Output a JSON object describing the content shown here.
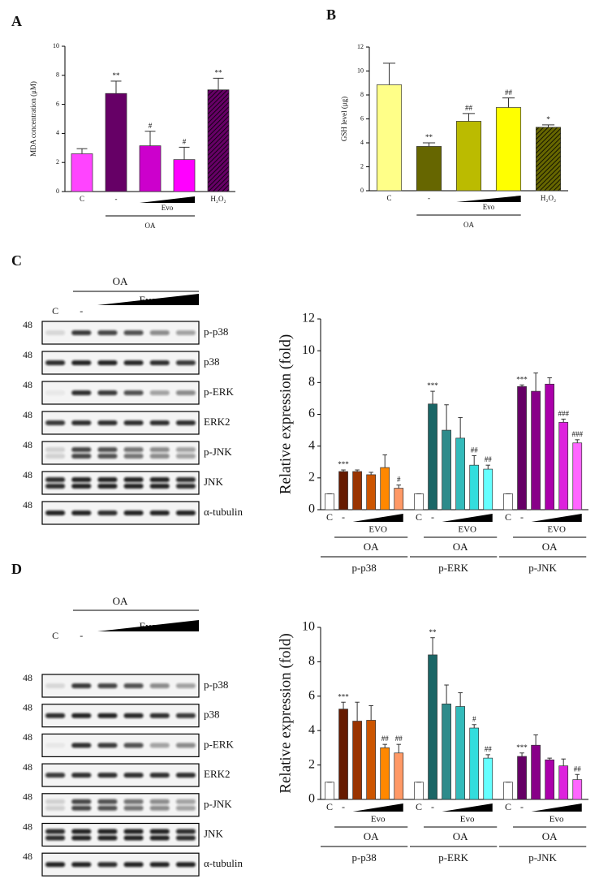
{
  "panel_labels": [
    "A",
    "B",
    "C",
    "D"
  ],
  "chart_data": [
    {
      "type": "bar",
      "ylabel": "MDA concentration (μM)",
      "ylim": [
        0,
        10
      ],
      "yticks": [
        0,
        2,
        4,
        6,
        8,
        10
      ],
      "categories": [
        "C",
        "-",
        null,
        null,
        "H₂O₂"
      ],
      "values": [
        2.6,
        6.75,
        3.15,
        2.2,
        7.0
      ],
      "errors": [
        0.35,
        0.85,
        1.0,
        0.85,
        0.8
      ],
      "colors": [
        "#ff44ff",
        "#660066",
        "#cc00cc",
        "#ff00ff",
        "#660066"
      ],
      "hatched": [
        false,
        false,
        false,
        false,
        true
      ],
      "annotations": [
        null,
        "**",
        "#",
        "#",
        "**"
      ],
      "treatment": "Evo",
      "condition": "OA"
    },
    {
      "type": "bar",
      "ylabel": "GSH level (μg)",
      "ylim": [
        0,
        12
      ],
      "yticks": [
        0,
        2,
        4,
        6,
        8,
        10,
        12
      ],
      "categories": [
        "C",
        "-",
        null,
        null,
        "H₂O₂"
      ],
      "values": [
        8.85,
        3.7,
        5.8,
        6.95,
        5.3
      ],
      "errors": [
        1.8,
        0.3,
        0.65,
        0.8,
        0.2
      ],
      "colors": [
        "#ffff88",
        "#666600",
        "#bbbb00",
        "#ffff00",
        "#666600"
      ],
      "hatched": [
        false,
        false,
        false,
        false,
        true
      ],
      "annotations": [
        null,
        "**",
        "##",
        "##",
        "*"
      ],
      "treatment": "Evo",
      "condition": "OA"
    },
    {
      "type": "grouped_bar",
      "ylabel": "Relative expression (fold)",
      "ylim": [
        0,
        12
      ],
      "yticks": [
        0,
        2,
        4,
        6,
        8,
        10,
        12
      ],
      "groups": [
        {
          "name": "p-p38",
          "categories": [
            "C",
            "-",
            null,
            null,
            null,
            null
          ],
          "values": [
            1,
            2.4,
            2.4,
            2.2,
            2.65,
            1.35
          ],
          "errors": [
            0,
            0.1,
            0.1,
            0.15,
            0.8,
            0.2
          ],
          "colors": [
            "#ffffff",
            "#661a00",
            "#993300",
            "#cc5500",
            "#ff8800",
            "#ff9966"
          ],
          "annotations": [
            null,
            "***",
            null,
            null,
            null,
            "#"
          ],
          "treatment": "EVO",
          "condition": "OA"
        },
        {
          "name": "p-ERK",
          "categories": [
            "C",
            "-",
            null,
            null,
            null,
            null
          ],
          "values": [
            1,
            6.65,
            5.0,
            4.5,
            2.8,
            2.55
          ],
          "errors": [
            0,
            0.8,
            1.6,
            1.3,
            0.6,
            0.25
          ],
          "colors": [
            "#ffffff",
            "#1a6666",
            "#2e8b8b",
            "#33bbbb",
            "#33dddd",
            "#66ffff"
          ],
          "annotations": [
            null,
            "***",
            null,
            null,
            "##",
            "##"
          ],
          "treatment": "EVO",
          "condition": "OA"
        },
        {
          "name": "p-JNK",
          "categories": [
            "C",
            "-",
            null,
            null,
            null,
            null
          ],
          "values": [
            1,
            7.75,
            7.45,
            7.9,
            5.5,
            4.2
          ],
          "errors": [
            0,
            0.1,
            1.15,
            0.4,
            0.2,
            0.2
          ],
          "colors": [
            "#ffffff",
            "#660066",
            "#880088",
            "#aa00aa",
            "#dd22dd",
            "#ff66ff"
          ],
          "annotations": [
            null,
            "***",
            null,
            null,
            "###",
            "###"
          ],
          "treatment": "EVO",
          "condition": "OA"
        }
      ]
    },
    {
      "type": "grouped_bar",
      "ylabel": "Relative expression (fold)",
      "ylim": [
        0,
        10
      ],
      "yticks": [
        0,
        2,
        4,
        6,
        8,
        10
      ],
      "groups": [
        {
          "name": "p-p38",
          "categories": [
            "C",
            "-",
            null,
            null,
            null,
            null
          ],
          "values": [
            1,
            5.25,
            4.55,
            4.6,
            3.0,
            2.7
          ],
          "errors": [
            0,
            0.4,
            1.1,
            0.85,
            0.2,
            0.5
          ],
          "colors": [
            "#ffffff",
            "#661a00",
            "#993300",
            "#cc5500",
            "#ff8800",
            "#ff9966"
          ],
          "annotations": [
            null,
            "***",
            null,
            null,
            "##",
            "##"
          ],
          "treatment": "Evo",
          "condition": "OA"
        },
        {
          "name": "p-ERK",
          "categories": [
            "C",
            "-",
            null,
            null,
            null,
            null
          ],
          "values": [
            1,
            8.4,
            5.55,
            5.4,
            4.15,
            2.4
          ],
          "errors": [
            0,
            1.0,
            1.1,
            0.8,
            0.2,
            0.2
          ],
          "colors": [
            "#ffffff",
            "#1a6666",
            "#2e8b8b",
            "#33bbbb",
            "#33dddd",
            "#66ffff"
          ],
          "annotations": [
            null,
            "**",
            null,
            null,
            "#",
            "##"
          ],
          "treatment": "Evo",
          "condition": "OA"
        },
        {
          "name": "p-JNK",
          "categories": [
            "C",
            "-",
            null,
            null,
            null,
            null
          ],
          "values": [
            1,
            2.5,
            3.15,
            2.3,
            1.95,
            1.15
          ],
          "errors": [
            0,
            0.2,
            0.6,
            0.1,
            0.4,
            0.3
          ],
          "colors": [
            "#ffffff",
            "#660066",
            "#880088",
            "#aa00aa",
            "#dd22dd",
            "#ff66ff"
          ],
          "annotations": [
            null,
            "***",
            null,
            null,
            null,
            "##"
          ],
          "treatment": "Evo",
          "condition": "OA"
        }
      ]
    }
  ],
  "blots": [
    {
      "condition": "OA",
      "treatment": "Evo",
      "lanes": [
        "C",
        "-"
      ],
      "rows": [
        {
          "marker": "48",
          "label": "p-p38"
        },
        {
          "marker": "48",
          "label": "p38"
        },
        {
          "marker": "48",
          "label": "p-ERK"
        },
        {
          "marker": "48",
          "label": "ERK2"
        },
        {
          "marker": "48",
          "label": "p-JNK"
        },
        {
          "marker": "48",
          "label": "JNK"
        },
        {
          "marker": "48",
          "label": "α-tubulin"
        }
      ]
    },
    {
      "condition": "OA",
      "treatment": "Evo",
      "lanes": [
        "C",
        "-"
      ],
      "rows": [
        {
          "marker": "48",
          "label": "p-p38"
        },
        {
          "marker": "48",
          "label": "p38"
        },
        {
          "marker": "48",
          "label": "p-ERK"
        },
        {
          "marker": "48",
          "label": "ERK2"
        },
        {
          "marker": "48",
          "label": "p-JNK"
        },
        {
          "marker": "48",
          "label": "JNK"
        },
        {
          "marker": "48",
          "label": "α-tubulin"
        }
      ]
    }
  ]
}
